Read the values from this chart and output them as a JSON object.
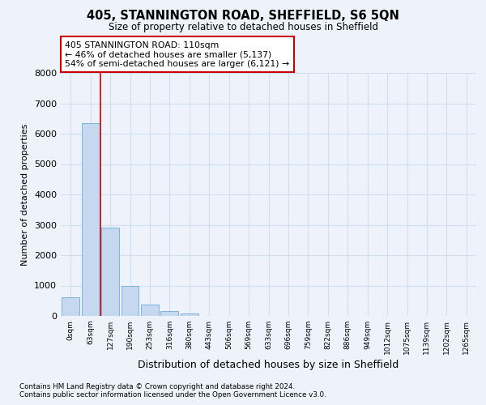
{
  "title_line1": "405, STANNINGTON ROAD, SHEFFIELD, S6 5QN",
  "title_line2": "Size of property relative to detached houses in Sheffield",
  "xlabel": "Distribution of detached houses by size in Sheffield",
  "ylabel": "Number of detached properties",
  "categories": [
    "0sqm",
    "63sqm",
    "127sqm",
    "190sqm",
    "253sqm",
    "316sqm",
    "380sqm",
    "443sqm",
    "506sqm",
    "569sqm",
    "633sqm",
    "696sqm",
    "759sqm",
    "822sqm",
    "886sqm",
    "949sqm",
    "1012sqm",
    "1075sqm",
    "1139sqm",
    "1202sqm",
    "1265sqm"
  ],
  "values": [
    620,
    6350,
    2920,
    980,
    370,
    155,
    75,
    0,
    0,
    0,
    0,
    0,
    0,
    0,
    0,
    0,
    0,
    0,
    0,
    0,
    0
  ],
  "bar_color": "#c5d8f0",
  "bar_edge_color": "#6baed6",
  "grid_color": "#d0dff0",
  "vline_color": "#cc0000",
  "annotation_text": "405 STANNINGTON ROAD: 110sqm\n← 46% of detached houses are smaller (5,137)\n54% of semi-detached houses are larger (6,121) →",
  "annotation_box_color": "#ffffff",
  "annotation_box_edge": "#cc0000",
  "ylim": [
    0,
    8000
  ],
  "yticks": [
    0,
    1000,
    2000,
    3000,
    4000,
    5000,
    6000,
    7000,
    8000
  ],
  "footer_line1": "Contains HM Land Registry data © Crown copyright and database right 2024.",
  "footer_line2": "Contains public sector information licensed under the Open Government Licence v3.0.",
  "bg_color": "#eef2fa"
}
